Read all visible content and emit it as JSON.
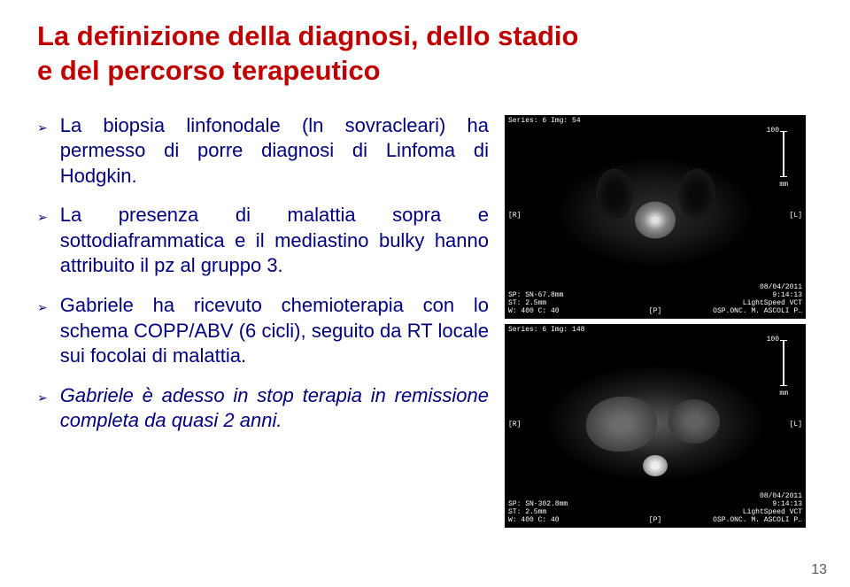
{
  "title_line1": "La definizione della diagnosi, dello stadio",
  "title_line2": "e del percorso terapeutico",
  "bullets": [
    "La biopsia linfonodale (ln sovracl ha permesso di porre diagnosi di Linfoma di Hodgkin.",
    "La presenza di malattia sopra e sottodiaframmatica e il mediastino bulky hanno attribuito il pz al gruppo 3.",
    "Gabriele ha ricevuto chemioterapia con lo schema COPP/ABV (6 cicli), seguito da RT locale sui focolai di malattia.",
    "Gabriele è adesso in stop terapia in remissione completa da quasi 2 anni."
  ],
  "bullet0_text": "La biopsia linfonodale (ln sovracleari) ha permesso di porre diagnosi di Linfoma di Hodgkin.",
  "bullet1_text": "La presenza di malattia sopra e sottodiaframmatica e il mediastino bulky hanno attribuito il pz al gruppo 3.",
  "bullet2_text": "Gabriele ha ricevuto chemioterapia con lo schema COPP/ABV (6 cicli), seguito da RT locale sui focolai di malattia.",
  "bullet3_text": "Gabriele è adesso in stop terapia in remissione completa da quasi 2 anni.",
  "scan1": {
    "series": "Series: 6 Img: 54",
    "ruler": "100",
    "ruler_unit": "mm",
    "left_marker": "[R]",
    "right_marker": "[L]",
    "bottom_center": "[P]",
    "bl_line1": "SP: SN-67.8mm",
    "bl_line2": "ST:  2.5mm",
    "bl_line3": "W: 400 C: 40",
    "br_line1": "08/04/2011",
    "br_line2": "9:14:13",
    "br_line3": "LightSpeed VCT",
    "br_line4": "OSP.ONC. M. ASCOLI  P…"
  },
  "scan2": {
    "series": "Series: 6 Img: 148",
    "ruler": "100",
    "ruler_unit": "mm",
    "left_marker": "[R]",
    "right_marker": "[L]",
    "bottom_center": "[P]",
    "bl_line1": "SP: SN-302.8mm",
    "bl_line2": "ST:  2.5mm",
    "bl_line3": "W: 400 C: 40",
    "br_line1": "08/04/2011",
    "br_line2": "9:14:13",
    "br_line3": "LightSpeed VCT",
    "br_line4": "OSP.ONC. M. ASCOLI  P…"
  },
  "page_number": "13",
  "colors": {
    "title": "#c00000",
    "body": "#000080",
    "bg": "#ffffff"
  }
}
